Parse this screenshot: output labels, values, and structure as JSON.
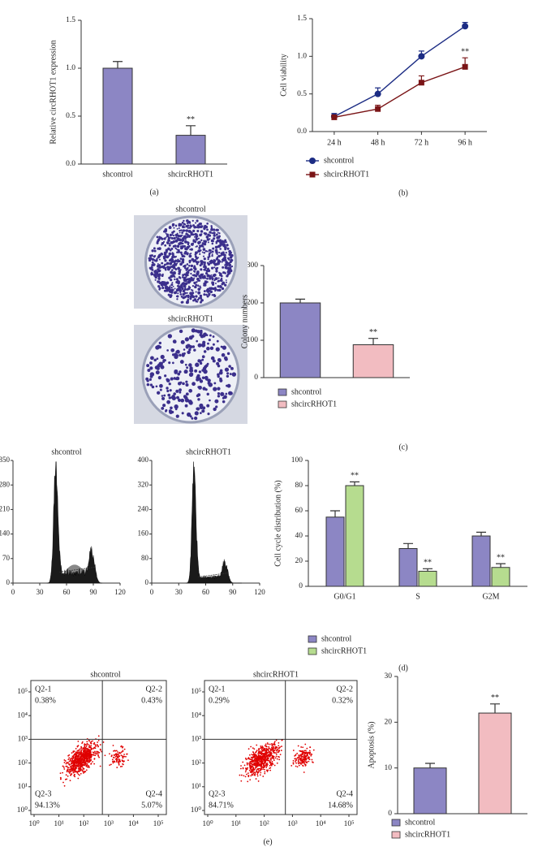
{
  "chart_data": [
    {
      "type": "bar",
      "panel_label": "(a)",
      "ylabel": "Relative circRHOT1 expression",
      "categories": [
        "shcontrol",
        "shcircRHOT1"
      ],
      "values": [
        1.0,
        0.3
      ],
      "errors": [
        0.07,
        0.1
      ],
      "significance": [
        null,
        "**"
      ],
      "color": "#8c86c4",
      "ylim": [
        0,
        1.5
      ],
      "yticks": [
        {
          "value": 0,
          "label": "0.0"
        },
        0.5,
        {
          "value": 1,
          "label": "1.0"
        },
        1.5
      ]
    },
    {
      "type": "line",
      "panel_label": "(b)",
      "ylabel": "Cell viability",
      "categories": [
        "24 h",
        "48 h",
        "72 h",
        "96 h"
      ],
      "series": [
        {
          "name": "shcontrol",
          "color": "#1c2c84",
          "marker": "circle",
          "values": [
            0.2,
            0.5,
            1.0,
            1.4
          ],
          "errors": [
            0.04,
            0.08,
            0.07,
            0.05
          ]
        },
        {
          "name": "shcircRHOT1",
          "color": "#7a1416",
          "marker": "square",
          "values": [
            0.19,
            0.3,
            0.65,
            0.86
          ],
          "errors": [
            0.03,
            0.05,
            0.09,
            0.12
          ],
          "significance": [
            null,
            null,
            null,
            "**"
          ]
        }
      ],
      "ylim": [
        0,
        1.5
      ],
      "yticks": [
        {
          "value": 0,
          "label": "0.0"
        },
        0.5,
        {
          "value": 1,
          "label": "1.0"
        },
        1.5
      ]
    },
    {
      "type": "bar",
      "panel_label": "(c)",
      "ylabel": "Colony numbers",
      "image_labels": [
        "shcontrol",
        "shcircRHOT1"
      ],
      "series": [
        {
          "name": "shcontrol",
          "color": "#8c86c4",
          "values": [
            200
          ],
          "errors": [
            10
          ]
        },
        {
          "name": "shcircRHOT1",
          "color": "#f2bcc1",
          "values": [
            88
          ],
          "errors": [
            17
          ],
          "significance": [
            "**"
          ]
        }
      ],
      "ylim": [
        0,
        300
      ],
      "yticks": [
        0,
        100,
        200,
        300
      ]
    },
    {
      "type": "histogram",
      "title": "shcontrol",
      "xlim": [
        0,
        120
      ],
      "xticks": [
        0,
        30,
        60,
        90,
        120
      ],
      "ylim": [
        0,
        350
      ],
      "yticks": [
        0,
        70,
        140,
        210,
        280,
        350
      ]
    },
    {
      "type": "histogram",
      "title": "shcircRHOT1",
      "xlim": [
        0,
        120
      ],
      "xticks": [
        0,
        30,
        60,
        90,
        120
      ],
      "ylim": [
        0,
        400
      ],
      "yticks": [
        0,
        80,
        160,
        240,
        320,
        400
      ]
    },
    {
      "type": "bar",
      "panel_label": "(d)",
      "ylabel": "Cell cycle distribution (%)",
      "categories": [
        "G0/G1",
        "S",
        "G2M"
      ],
      "series": [
        {
          "name": "shcontrol",
          "color": "#8c86c4",
          "values": [
            55,
            30,
            40
          ],
          "errors": [
            5,
            4,
            3
          ]
        },
        {
          "name": "shcircRHOT1",
          "color": "#b6dc8f",
          "values": [
            80,
            12,
            15
          ],
          "errors": [
            3,
            2,
            3
          ],
          "significance": [
            "**",
            "**",
            "**"
          ]
        }
      ],
      "ylim": [
        0,
        100
      ],
      "yticks": [
        0,
        20,
        40,
        60,
        80,
        100
      ]
    },
    {
      "type": "scatter",
      "title": "shcontrol",
      "log_scale": true,
      "xlim": [
        1,
        100000
      ],
      "ylim": [
        1,
        100000
      ],
      "xticks": [
        {
          "value": 1,
          "label": "10⁰"
        },
        {
          "value": 10,
          "label": "10¹"
        },
        {
          "value": 100,
          "label": "10²"
        },
        {
          "value": 1000,
          "label": "10³"
        },
        {
          "value": 10000,
          "label": "10⁴"
        },
        {
          "value": 100000,
          "label": "10⁵"
        }
      ],
      "yticks": [
        {
          "value": 1,
          "label": "10⁰"
        },
        {
          "value": 10,
          "label": "10¹"
        },
        {
          "value": 100,
          "label": "10²"
        },
        {
          "value": 1000,
          "label": "10³"
        },
        {
          "value": 10000,
          "label": "10⁴"
        },
        {
          "value": 100000,
          "label": "10⁵"
        }
      ],
      "quadrants": [
        "Q2-1",
        "Q2-2",
        "Q2-3",
        "Q2-4"
      ],
      "quadrant_values": [
        0.38,
        0.43,
        94.13,
        5.07
      ],
      "quadrant_value_labels": [
        "0.38%",
        "0.43%",
        "94.13%",
        "5.07%"
      ]
    },
    {
      "type": "scatter",
      "title": "shcircRHOT1",
      "log_scale": true,
      "xlim": [
        1,
        100000
      ],
      "ylim": [
        1,
        100000
      ],
      "xticks": [
        {
          "value": 1,
          "label": "10⁰"
        },
        {
          "value": 10,
          "label": "10¹"
        },
        {
          "value": 100,
          "label": "10²"
        },
        {
          "value": 1000,
          "label": "10³"
        },
        {
          "value": 10000,
          "label": "10⁴"
        },
        {
          "value": 100000,
          "label": "10⁵"
        }
      ],
      "yticks": [
        {
          "value": 1,
          "label": "10⁰"
        },
        {
          "value": 10,
          "label": "10¹"
        },
        {
          "value": 100,
          "label": "10²"
        },
        {
          "value": 1000,
          "label": "10³"
        },
        {
          "value": 10000,
          "label": "10⁴"
        },
        {
          "value": 100000,
          "label": "10⁵"
        }
      ],
      "quadrants": [
        "Q2-1",
        "Q2-2",
        "Q2-3",
        "Q2-4"
      ],
      "quadrant_values": [
        0.29,
        0.32,
        84.71,
        14.68
      ],
      "quadrant_value_labels": [
        "0.29%",
        "0.32%",
        "84.71%",
        "14.68%"
      ]
    },
    {
      "type": "bar",
      "panel_label": "(e)",
      "ylabel": "Apoptosis (%)",
      "series": [
        {
          "name": "shcontrol",
          "color": "#8c86c4",
          "values": [
            10
          ],
          "errors": [
            1
          ]
        },
        {
          "name": "shcircRHOT1",
          "color": "#f2bcc1",
          "values": [
            22
          ],
          "errors": [
            2
          ],
          "significance": [
            "**"
          ]
        }
      ],
      "ylim": [
        0,
        30
      ],
      "yticks": [
        0,
        10,
        20,
        30
      ]
    }
  ]
}
